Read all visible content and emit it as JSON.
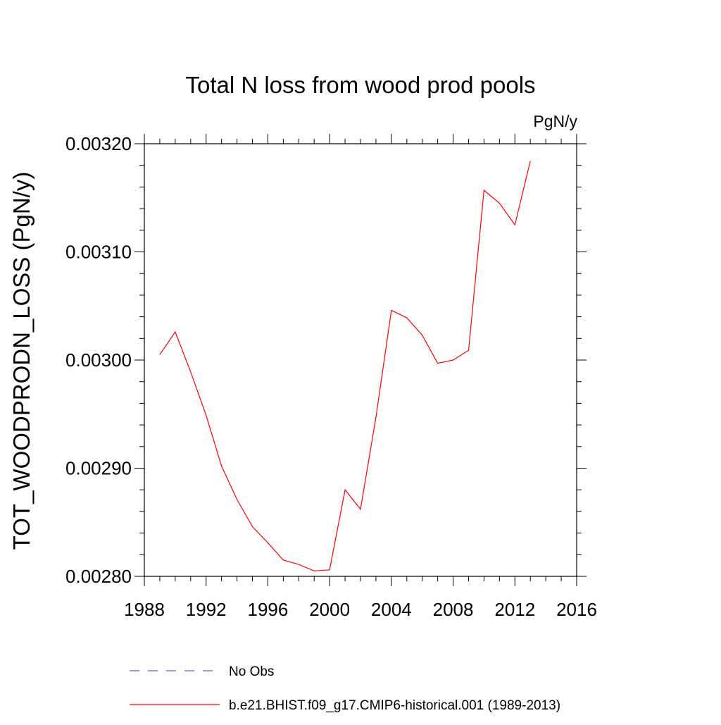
{
  "chart_data": {
    "type": "line",
    "title": "Total N loss from wood prod pools",
    "units_label": "PgN/y",
    "ylabel": "TOT_WOODPRODN_LOSS  (PgN/y)",
    "xlabel": "",
    "xlim": [
      1988,
      2016
    ],
    "ylim": [
      0.0028,
      0.0032
    ],
    "x_ticks": [
      "1988",
      "1992",
      "1996",
      "2000",
      "2004",
      "2008",
      "2012",
      "2016"
    ],
    "y_ticks": [
      "0.00280",
      "0.00290",
      "0.00300",
      "0.00310",
      "0.00320"
    ],
    "grid": false,
    "legend_position": "bottom",
    "series": [
      {
        "name": "No Obs",
        "color": "#5b5bd6",
        "dash": "dashed",
        "x": [],
        "y": []
      },
      {
        "name": "b.e21.BHIST.f09_g17.CMIP6-historical.001 (1989-2013)",
        "color": "#ff0000",
        "dash": "solid",
        "x": [
          1989,
          1990,
          1991,
          1992,
          1993,
          1994,
          1995,
          1996,
          1997,
          1998,
          1999,
          2000,
          2001,
          2002,
          2003,
          2004,
          2005,
          2006,
          2007,
          2008,
          2009,
          2010,
          2011,
          2012,
          2013
        ],
        "y": [
          0.003005,
          0.003026,
          0.002989,
          0.002949,
          0.002902,
          0.002871,
          0.002846,
          0.002831,
          0.002815,
          0.002811,
          0.002805,
          0.002806,
          0.00288,
          0.002862,
          0.002947,
          0.003046,
          0.003039,
          0.003023,
          0.002997,
          0.003,
          0.003009,
          0.003157,
          0.003145,
          0.003125,
          0.003184
        ]
      }
    ]
  }
}
